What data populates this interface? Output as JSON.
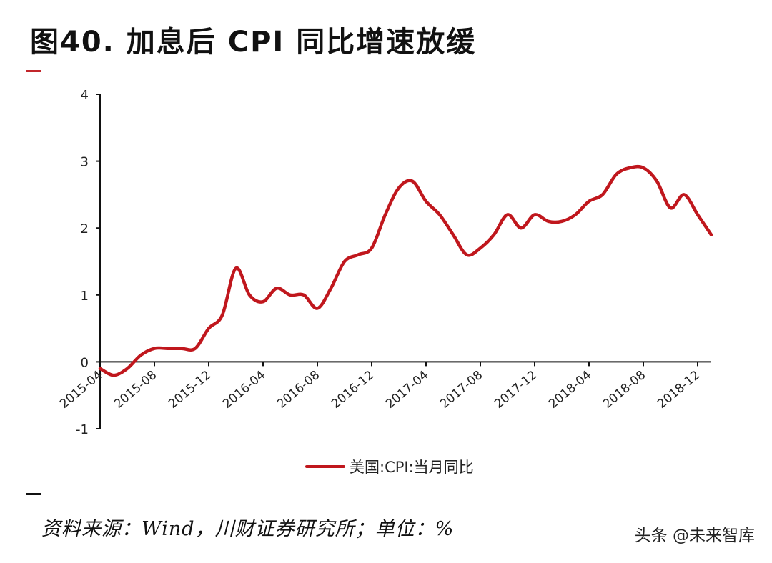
{
  "title": "图40. 加息后 CPI 同比增速放缓",
  "source": "资料来源：Wind，川财证券研究所；单位：%",
  "watermark": "头条 @未来智库",
  "colors": {
    "series": "#c0171d",
    "rule": "#c2262b",
    "axis": "#111111"
  },
  "chart_data": {
    "type": "line",
    "ylim": [
      -1,
      4
    ],
    "yticks": [
      "-1",
      "0",
      "1",
      "2",
      "3",
      "4"
    ],
    "xticks": [
      "2015-04",
      "2015-08",
      "2015-12",
      "2016-04",
      "2016-08",
      "2016-12",
      "2017-04",
      "2017-08",
      "2017-12",
      "2018-04",
      "2018-08",
      "2018-12"
    ],
    "grid": false,
    "legend_position": "bottom",
    "series": [
      {
        "name": "美国:CPI:当月同比",
        "x": [
          "2015-04",
          "2015-05",
          "2015-06",
          "2015-07",
          "2015-08",
          "2015-09",
          "2015-10",
          "2015-11",
          "2015-12",
          "2016-01",
          "2016-02",
          "2016-03",
          "2016-04",
          "2016-05",
          "2016-06",
          "2016-07",
          "2016-08",
          "2016-09",
          "2016-10",
          "2016-11",
          "2016-12",
          "2017-01",
          "2017-02",
          "2017-03",
          "2017-04",
          "2017-05",
          "2017-06",
          "2017-07",
          "2017-08",
          "2017-09",
          "2017-10",
          "2017-11",
          "2017-12",
          "2018-01",
          "2018-02",
          "2018-03",
          "2018-04",
          "2018-05",
          "2018-06",
          "2018-07",
          "2018-08",
          "2018-09",
          "2018-10",
          "2018-11",
          "2018-12",
          "2019-01"
        ],
        "values": [
          -0.1,
          -0.2,
          -0.1,
          0.1,
          0.2,
          0.2,
          0.2,
          0.2,
          0.5,
          0.7,
          1.4,
          1.0,
          0.9,
          1.1,
          1.0,
          1.0,
          0.8,
          1.1,
          1.5,
          1.6,
          1.7,
          2.2,
          2.6,
          2.7,
          2.4,
          2.2,
          1.9,
          1.6,
          1.7,
          1.9,
          2.2,
          2.0,
          2.2,
          2.1,
          2.1,
          2.2,
          2.4,
          2.5,
          2.8,
          2.9,
          2.9,
          2.7,
          2.3,
          2.5,
          2.2,
          1.9
        ]
      }
    ]
  }
}
